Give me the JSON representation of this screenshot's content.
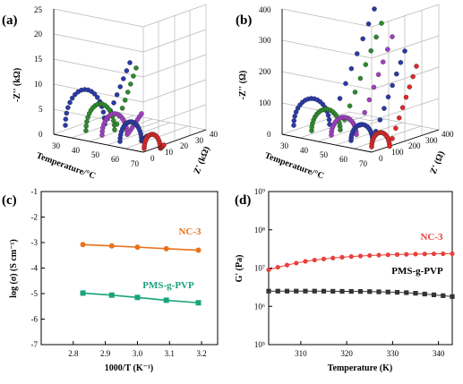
{
  "panels": {
    "a": {
      "label": "(a)",
      "z_axis_label": "-Z'' (kΩ)",
      "x_axis_label": "Temperature/°C",
      "y_axis_label": "Z' (kΩ)",
      "z_ticks": [
        "0",
        "5",
        "10",
        "15",
        "20",
        "25"
      ],
      "temp_ticks": [
        "30",
        "40",
        "50",
        "60",
        "70"
      ],
      "zp_ticks": [
        "0",
        "10",
        "20",
        "30",
        "40"
      ]
    },
    "b": {
      "label": "(b)",
      "z_axis_label": "-Z'' (Ω)",
      "x_axis_label": "Temperature/°C",
      "y_axis_label": "Z' (Ω)",
      "z_ticks": [
        "0",
        "100",
        "200",
        "300",
        "400"
      ],
      "temp_ticks": [
        "30",
        "40",
        "50",
        "60",
        "70"
      ],
      "zp_ticks": [
        "0",
        "100",
        "200",
        "300",
        "400"
      ]
    },
    "c": {
      "label": "(c)"
    },
    "d": {
      "label": "(d)"
    }
  },
  "chart_data": [
    {
      "type": "line",
      "panel": "c",
      "xlabel": "1000/T (K⁻¹)",
      "ylabel": "log (σ) (S cm⁻¹)",
      "xlim": [
        2.7,
        3.25
      ],
      "ylim": [
        -7,
        -1
      ],
      "xticks": [
        "2.8",
        "2.9",
        "3.0",
        "3.1",
        "3.2"
      ],
      "yticks": [
        "-1",
        "-2",
        "-3",
        "-4",
        "-5",
        "-6",
        "-7"
      ],
      "series": [
        {
          "name": "NC-3",
          "color": "#e8721c",
          "marker": "circle",
          "x": [
            2.83,
            2.92,
            3.0,
            3.09,
            3.19
          ],
          "y": [
            -3.08,
            -3.13,
            -3.18,
            -3.24,
            -3.3
          ]
        },
        {
          "name": "PMS-g-PVP",
          "color": "#1aa37a",
          "marker": "square",
          "x": [
            2.83,
            2.92,
            3.0,
            3.09,
            3.19
          ],
          "y": [
            -4.98,
            -5.06,
            -5.15,
            -5.26,
            -5.36
          ]
        }
      ]
    },
    {
      "type": "scatter",
      "panel": "d",
      "xlabel": "Temperature (K)",
      "ylabel": "G' (Pa)",
      "yscale": "log",
      "xlim": [
        303,
        343
      ],
      "ylim": [
        100000,
        1000000000
      ],
      "xticks": [
        "310",
        "320",
        "330",
        "340"
      ],
      "yticks": [
        "10⁵",
        "10⁶",
        "10⁷",
        "10⁸",
        "10⁹"
      ],
      "series": [
        {
          "name": "NC-3",
          "color": "#e8403c",
          "marker": "circle",
          "x": [
            303,
            305,
            307,
            309,
            311,
            313,
            315,
            317,
            319,
            321,
            323,
            325,
            327,
            329,
            331,
            333,
            335,
            337,
            339,
            341,
            343
          ],
          "y": [
            9000000,
            10500000,
            12000000,
            13500000,
            15000000,
            16200000,
            17300000,
            18300000,
            19200000,
            20000000,
            20700000,
            21300000,
            21800000,
            22200000,
            22600000,
            22900000,
            23200000,
            23400000,
            23600000,
            23700000,
            23800000
          ]
        },
        {
          "name": "PMS-g-PVP",
          "color": "#333333",
          "marker": "square",
          "x": [
            303,
            305,
            307,
            309,
            311,
            313,
            315,
            317,
            319,
            321,
            323,
            325,
            327,
            329,
            331,
            333,
            335,
            337,
            339,
            341,
            343
          ],
          "y": [
            2500000,
            2500000,
            2500000,
            2500000,
            2500000,
            2500000,
            2490000,
            2480000,
            2470000,
            2460000,
            2450000,
            2430000,
            2400000,
            2370000,
            2330000,
            2280000,
            2200000,
            2100000,
            2000000,
            1900000,
            1800000
          ]
        }
      ]
    }
  ]
}
